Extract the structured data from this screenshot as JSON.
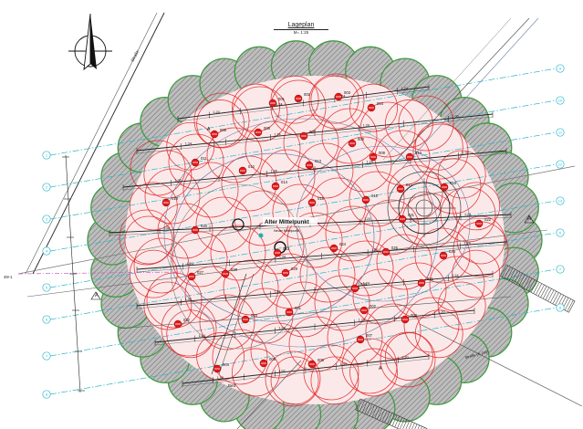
{
  "drawing": {
    "title": "Lageplan",
    "scale": "M= 1:25",
    "center_label": "Alter Mittelpunkt",
    "center_sublabel": "Neuer Mittelpunkt",
    "street_label": "Straße",
    "bottom_right_label": "Straße (N 240)",
    "south_bottom_label": "Bett"
  },
  "pier_labels": [
    "001",
    "002",
    "003",
    "004",
    "005",
    "006",
    "007",
    "008",
    "009",
    "010",
    "011",
    "012",
    "013",
    "014",
    "015",
    "016",
    "017",
    "018",
    "019",
    "020",
    "021",
    "022",
    "023",
    "024",
    "025",
    "026",
    "027",
    "028",
    "029",
    "030",
    "031",
    "032",
    "033"
  ],
  "dimension_labels": [
    "1.24",
    "1.24",
    "1.24",
    "1.24",
    "1.24",
    "1.24",
    "1.20",
    "1.00",
    "1.02",
    "1.45",
    "1.20",
    "1.02",
    "1.06",
    "1.08",
    "1.24",
    "1.24",
    "1.24",
    "1.26",
    "1.00",
    "1.24",
    "1.24"
  ],
  "axis_markers": [
    "A",
    "A",
    "A",
    "A"
  ],
  "grid_ids": [
    "1",
    "2",
    "3",
    "4",
    "5",
    "6",
    "7",
    "8",
    "9",
    "10",
    "11",
    "12",
    "13"
  ],
  "left_marker": "49+1"
}
